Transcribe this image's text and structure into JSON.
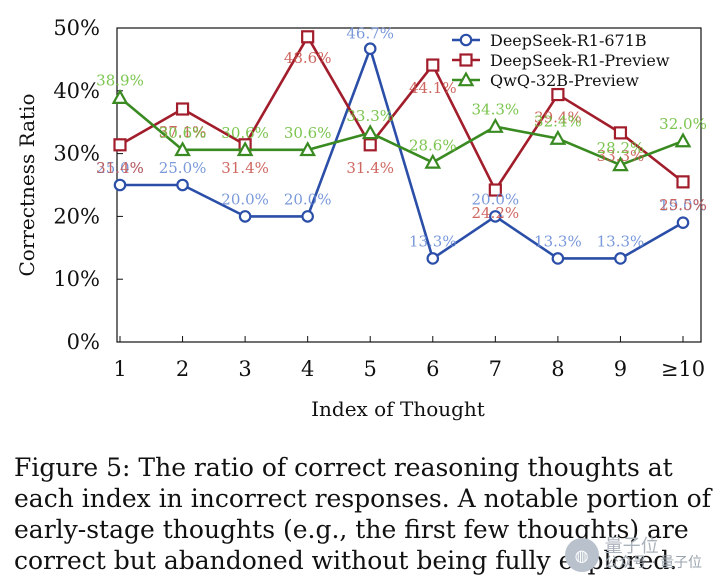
{
  "chart_data": {
    "type": "line",
    "title": "",
    "xlabel": "Index of Thought",
    "ylabel": "Correctness Ratio",
    "categories": [
      "1",
      "2",
      "3",
      "4",
      "5",
      "6",
      "7",
      "8",
      "9",
      "≥10"
    ],
    "ylim": [
      0,
      50
    ],
    "yticks": [
      "0%",
      "10%",
      "20%",
      "30%",
      "40%",
      "50%"
    ],
    "grid": false,
    "legend_position": "top-right",
    "series": [
      {
        "name": "DeepSeek-R1-671B",
        "color": "#2b4fa8",
        "label_color": "#6b8ed6",
        "marker": "circle",
        "values": [
          25.0,
          25.0,
          20.0,
          20.0,
          46.7,
          13.3,
          20.0,
          13.3,
          13.3,
          19.0
        ],
        "labels": [
          "25.0%",
          "25.0%",
          "20.0%",
          "20.0%",
          "46.7%",
          "13.3%",
          "20.0%",
          "13.3%",
          "13.3%",
          "19.0%"
        ]
      },
      {
        "name": "DeepSeek-R1-Preview",
        "color": "#a21d2b",
        "label_color": "#c9574f",
        "marker": "square",
        "values": [
          31.4,
          37.1,
          31.4,
          48.6,
          31.4,
          44.1,
          24.2,
          39.4,
          33.3,
          25.5
        ],
        "labels": [
          "31.4%",
          "37.1%",
          "31.4%",
          "48.6%",
          "31.4%",
          "44.1%",
          "24.2%",
          "39.4%",
          "33.3%",
          "25.5%"
        ]
      },
      {
        "name": "QwQ-32B-Preview",
        "color": "#3a8a22",
        "label_color": "#6dbf3c",
        "marker": "triangle",
        "values": [
          38.9,
          30.6,
          30.6,
          30.6,
          33.3,
          28.6,
          34.3,
          32.4,
          28.2,
          32.0
        ],
        "labels": [
          "38.9%",
          "30.6%",
          "30.6%",
          "30.6%",
          "33.3%",
          "28.6%",
          "34.3%",
          "32.4%",
          "28.2%",
          "32.0%"
        ]
      }
    ]
  },
  "caption": {
    "text": "Figure 5: The ratio of correct reasoning thoughts at each index in incorrect responses. A notable portion of early-stage thoughts (e.g., the first few thoughts) are correct but abandoned without being fully explored."
  },
  "watermark": {
    "title": "量子位",
    "subtitle": "公众号 · 量子位"
  }
}
